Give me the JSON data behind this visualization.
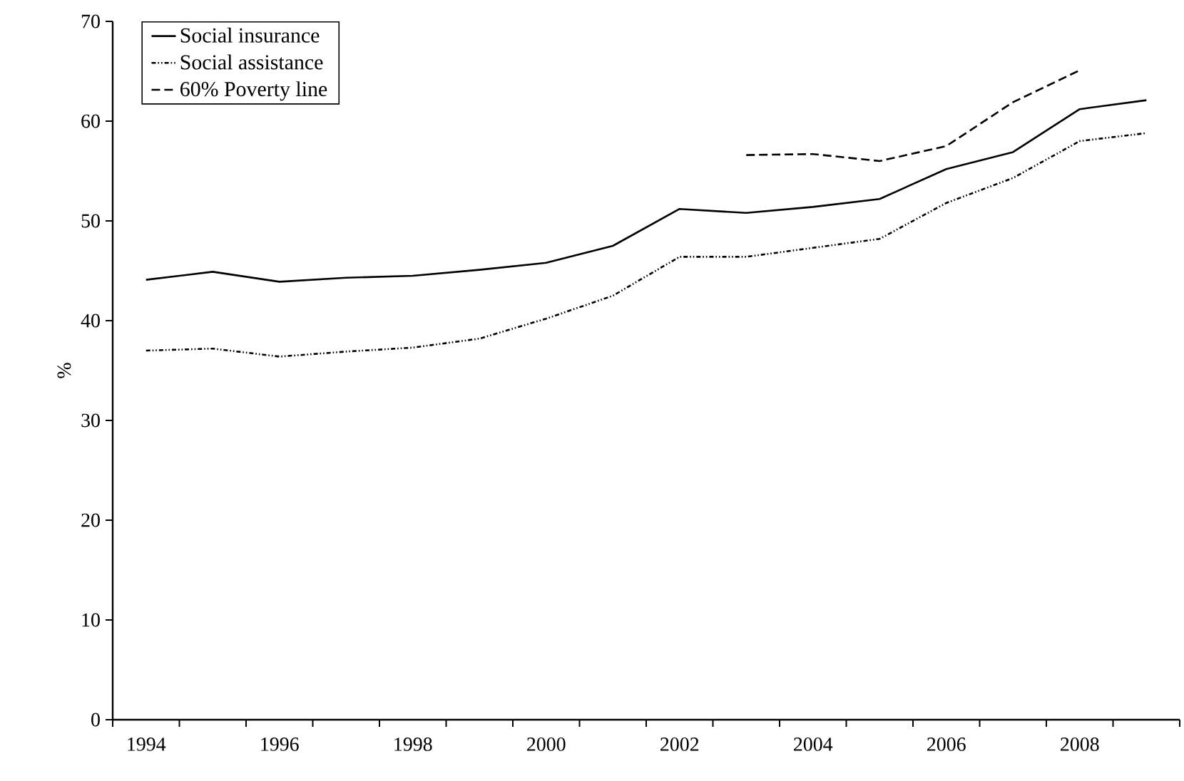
{
  "chart_data": {
    "type": "line",
    "ylabel": "%",
    "categories": [
      "1994",
      null,
      "1996",
      null,
      "1998",
      null,
      "2000",
      null,
      "2002",
      null,
      "2004",
      null,
      "2006",
      null,
      "2008",
      null
    ],
    "ylim": [
      0,
      70
    ],
    "yticks": [
      0,
      10,
      20,
      30,
      40,
      50,
      60,
      70
    ],
    "legend": "top left",
    "series": [
      {
        "name": "Social insurance",
        "color": "#000000",
        "line_style": "solid",
        "values": [
          44.1,
          44.9,
          43.9,
          44.3,
          44.5,
          45.1,
          45.8,
          47.5,
          51.2,
          50.8,
          51.4,
          52.2,
          55.2,
          56.9,
          61.2,
          62.1
        ]
      },
      {
        "name": "Social assistance",
        "color": "#000000",
        "line_style": "dotted",
        "values": [
          37.0,
          37.2,
          36.4,
          36.9,
          37.3,
          38.2,
          40.2,
          42.5,
          46.4,
          46.4,
          47.3,
          48.2,
          51.8,
          54.3,
          58.0,
          58.8
        ]
      },
      {
        "name": "60% Poverty line",
        "color": "#000000",
        "line_style": "dashed",
        "values": [
          null,
          null,
          null,
          null,
          null,
          null,
          null,
          null,
          null,
          56.6,
          56.7,
          56.0,
          57.5,
          61.9,
          65.1,
          null
        ]
      }
    ]
  }
}
